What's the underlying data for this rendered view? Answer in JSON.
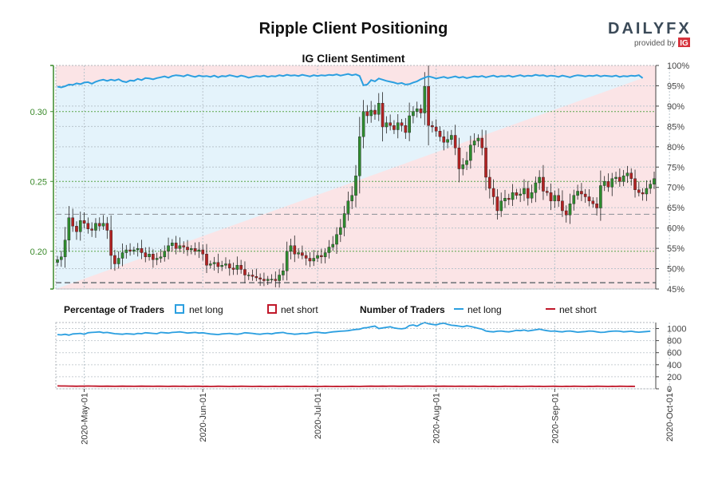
{
  "header": {
    "title": "Ripple Client Positioning",
    "subtitle": "IG Client Sentiment",
    "brand": "DAILYFX",
    "brand_sub": "provided by",
    "brand_ig": "IG"
  },
  "legend": {
    "pct_title": "Percentage of Traders",
    "pct_long": "net long",
    "pct_short": "net short",
    "num_title": "Number of Traders",
    "num_long": "net long",
    "num_short": "net short"
  },
  "colors": {
    "long": "#2b9fe0",
    "short": "#c0182a",
    "bull": "#2e8b2e",
    "bear": "#b22222",
    "long_area": "#e4f3fb",
    "short_area": "#fbe4e6",
    "left_axis": "#3a8a2a"
  },
  "chart_data": {
    "type": "candlestick+line",
    "price_axis": {
      "ticks": [
        "0.20",
        "0.25",
        "0.30"
      ],
      "range": [
        0.173,
        0.333
      ]
    },
    "pct_axis": {
      "ticks": [
        "45%",
        "50%",
        "55%",
        "60%",
        "65%",
        "70%",
        "75%",
        "80%",
        "85%",
        "90%",
        "95%",
        "100%"
      ],
      "range": [
        45,
        100
      ]
    },
    "num_axis": {
      "ticks": [
        "0",
        "200",
        "400",
        "600",
        "800",
        "1000"
      ],
      "range": [
        0,
        1100
      ]
    },
    "x_ticks": [
      {
        "label": "2020-May-01",
        "day": 7
      },
      {
        "label": "2020-Jun-01",
        "day": 38
      },
      {
        "label": "2020-Jul-01",
        "day": 68
      },
      {
        "label": "2020-Aug-01",
        "day": 99
      },
      {
        "label": "2020-Sep-01",
        "day": 130
      },
      {
        "label": "2020-Oct-01",
        "day": 160
      }
    ],
    "price_close": [
      0.194,
      0.196,
      0.208,
      0.224,
      0.218,
      0.214,
      0.222,
      0.22,
      0.216,
      0.215,
      0.22,
      0.218,
      0.22,
      0.215,
      0.197,
      0.191,
      0.195,
      0.199,
      0.201,
      0.2,
      0.201,
      0.202,
      0.199,
      0.196,
      0.198,
      0.194,
      0.195,
      0.196,
      0.2,
      0.204,
      0.206,
      0.202,
      0.204,
      0.203,
      0.201,
      0.202,
      0.2,
      0.201,
      0.198,
      0.19,
      0.191,
      0.192,
      0.189,
      0.19,
      0.191,
      0.188,
      0.187,
      0.19,
      0.187,
      0.183,
      0.183,
      0.182,
      0.181,
      0.18,
      0.179,
      0.18,
      0.18,
      0.179,
      0.183,
      0.186,
      0.2,
      0.204,
      0.198,
      0.199,
      0.197,
      0.195,
      0.193,
      0.195,
      0.197,
      0.196,
      0.199,
      0.203,
      0.205,
      0.212,
      0.217,
      0.227,
      0.236,
      0.24,
      0.254,
      0.282,
      0.3,
      0.297,
      0.301,
      0.298,
      0.306,
      0.289,
      0.292,
      0.29,
      0.287,
      0.292,
      0.29,
      0.285,
      0.297,
      0.3,
      0.302,
      0.299,
      0.318,
      0.29,
      0.289,
      0.286,
      0.282,
      0.278,
      0.28,
      0.283,
      0.274,
      0.259,
      0.262,
      0.265,
      0.276,
      0.279,
      0.281,
      0.274,
      0.253,
      0.245,
      0.239,
      0.229,
      0.236,
      0.238,
      0.237,
      0.242,
      0.24,
      0.241,
      0.245,
      0.238,
      0.242,
      0.249,
      0.253,
      0.243,
      0.242,
      0.236,
      0.24,
      0.236,
      0.229,
      0.226,
      0.234,
      0.24,
      0.243,
      0.241,
      0.239,
      0.236,
      0.234,
      0.231,
      0.247,
      0.25,
      0.246,
      0.252,
      0.253,
      0.25,
      0.254,
      0.256,
      0.252,
      0.244,
      0.242,
      0.241,
      0.245,
      0.248,
      0.252
    ],
    "pct_long": [
      94.8,
      94.6,
      94.9,
      95.3,
      95.2,
      95.6,
      95.4,
      95.8,
      95.9,
      95.5,
      96.0,
      96.3,
      96.5,
      96.2,
      96.5,
      96.3,
      96.6,
      96.1,
      95.9,
      96.3,
      96.2,
      96.7,
      96.4,
      96.9,
      96.8,
      96.6,
      96.9,
      97.1,
      97.3,
      97.0,
      97.4,
      97.6,
      97.5,
      97.3,
      97.7,
      97.4,
      97.2,
      97.5,
      97.3,
      97.4,
      97.2,
      97.5,
      97.1,
      97.4,
      97.3,
      97.6,
      97.4,
      97.2,
      97.5,
      97.3,
      97.0,
      97.2,
      97.4,
      97.3,
      97.5,
      97.2,
      97.4,
      97.3,
      97.6,
      97.4,
      97.7,
      97.5,
      97.6,
      97.4,
      97.7,
      97.5,
      97.3,
      97.6,
      97.4,
      97.6,
      97.5,
      97.7,
      97.6,
      97.8,
      97.5,
      97.7,
      97.9,
      97.6,
      97.8,
      97.4,
      95.1,
      95.3,
      96.4,
      96.1,
      96.8,
      96.5,
      96.2,
      96.0,
      95.8,
      95.5,
      95.7,
      95.3,
      95.4,
      95.8,
      96.1,
      96.6,
      97.0,
      97.3,
      97.1,
      96.8,
      97.0,
      97.2,
      96.9,
      97.1,
      97.3,
      97.0,
      97.2,
      96.9,
      97.1,
      97.3,
      97.2,
      97.4,
      97.1,
      97.3,
      97.5,
      97.2,
      97.4,
      97.3,
      97.5,
      97.2,
      97.4,
      97.6,
      97.3,
      97.5,
      97.4,
      97.7,
      97.5,
      97.6,
      97.3,
      97.5,
      97.4,
      97.2,
      97.5,
      97.3,
      97.1,
      97.4,
      97.6,
      97.5,
      97.3,
      97.5,
      97.4,
      97.6,
      97.3,
      97.5,
      97.4,
      97.3,
      97.5,
      97.2,
      97.4,
      97.3,
      97.5,
      97.4,
      97.6,
      96.9
    ],
    "num_long": [
      900,
      895,
      905,
      890,
      910,
      915,
      920,
      905,
      930,
      935,
      940,
      945,
      930,
      935,
      925,
      915,
      910,
      905,
      915,
      910,
      905,
      920,
      915,
      930,
      925,
      920,
      915,
      935,
      930,
      925,
      935,
      940,
      945,
      935,
      925,
      930,
      935,
      925,
      930,
      920,
      910,
      905,
      900,
      910,
      915,
      920,
      910,
      905,
      915,
      930,
      925,
      920,
      910,
      905,
      915,
      920,
      910,
      925,
      930,
      935,
      920,
      915,
      905,
      910,
      920,
      915,
      925,
      935,
      940,
      930,
      925,
      935,
      945,
      950,
      955,
      960,
      965,
      975,
      985,
      990,
      1010,
      1015,
      1030,
      1040,
      1000,
      1010,
      1020,
      1030,
      1010,
      1000,
      995,
      1005,
      1050,
      1060,
      1040,
      1075,
      1100,
      1080,
      1070,
      1060,
      1080,
      1090,
      1070,
      1055,
      1050,
      1040,
      1030,
      1045,
      1035,
      1020,
      1005,
      990,
      960,
      950,
      945,
      955,
      960,
      950,
      945,
      955,
      970,
      965,
      975,
      960,
      970,
      980,
      990,
      975,
      965,
      955,
      960,
      950,
      945,
      955,
      960,
      950,
      940,
      945,
      950,
      960,
      955,
      945,
      935,
      940,
      950,
      955,
      960,
      955,
      945,
      950,
      955,
      945,
      940,
      945,
      950,
      955
    ],
    "num_short": [
      48,
      46,
      47,
      45,
      44,
      43,
      45,
      44,
      46,
      45,
      44,
      42,
      43,
      44,
      42,
      41,
      43,
      44,
      42,
      43,
      41,
      42,
      44,
      43,
      42,
      41,
      43,
      42,
      41,
      40,
      42,
      43,
      41,
      42,
      40,
      41,
      43,
      42,
      40,
      41,
      39,
      40,
      42,
      41,
      40,
      39,
      41,
      40,
      42,
      41,
      40,
      39,
      40,
      41,
      38,
      39,
      40,
      41,
      39,
      40,
      41,
      40,
      39,
      38,
      40,
      41,
      39,
      40,
      38,
      39,
      41,
      40,
      39,
      40,
      38,
      39,
      40,
      41,
      40,
      39,
      41,
      42,
      44,
      43,
      42,
      44,
      43,
      45,
      44,
      43,
      42,
      44,
      45,
      43,
      44,
      42,
      43,
      45,
      44,
      43,
      42,
      44,
      43,
      42,
      41,
      43,
      42,
      41,
      43,
      42,
      40,
      41,
      42,
      40,
      41,
      39,
      40,
      42,
      41,
      40,
      41,
      39,
      40,
      41,
      42,
      40,
      41,
      39,
      40,
      41,
      42,
      40,
      39,
      41,
      40,
      42,
      41,
      40,
      39,
      41,
      40,
      42,
      41,
      40,
      39,
      41,
      40,
      42,
      41,
      40,
      41,
      40
    ],
    "reference_lines": [
      0.2265,
      0.1775
    ]
  }
}
